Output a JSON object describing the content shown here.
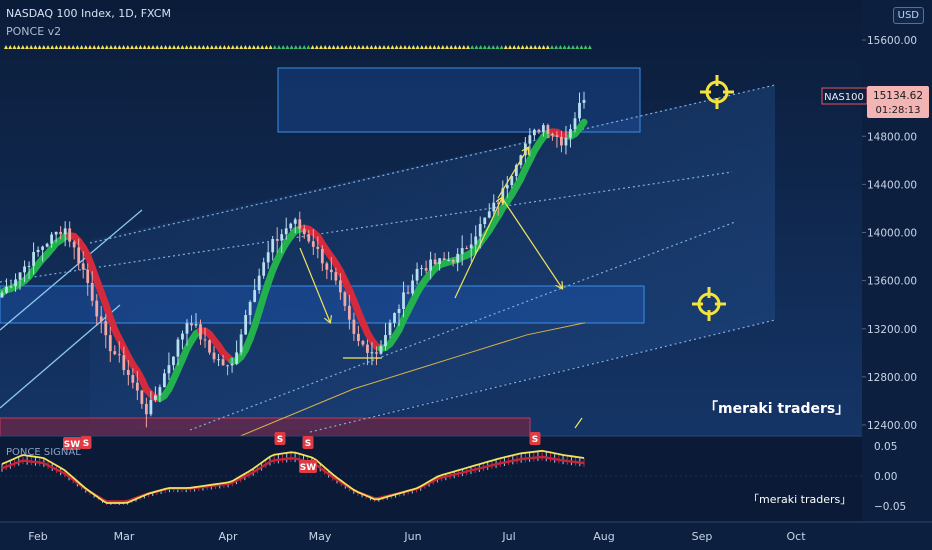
{
  "header": {
    "symbol_line": "NASDAQ 100 Index, 1D, FXCM",
    "indicator": "PONCE v2",
    "currency": "USD"
  },
  "price_tag": {
    "symbol": "NAS100",
    "price": "15134.62",
    "countdown": "01:28:13"
  },
  "watermark": "「meraki traders」",
  "colors": {
    "background_top": "#0c1f3f",
    "background_bottom": "#173a70",
    "candle_up": "#b7dff0",
    "candle_down": "#f2a7a7",
    "ribbon_up": "#22b14c",
    "ribbon_down": "#d42a3c",
    "annotation": "#f3e35b",
    "box_fill": "#1e5bb8",
    "box_stroke": "#3a8ee6"
  },
  "icons": [
    "crosshair-target-icon",
    "crosshair-target-icon"
  ],
  "chart_data": [
    {
      "type": "candlestick",
      "x_ticks": [
        "Feb",
        "Mar",
        "Apr",
        "May",
        "Jun",
        "Jul",
        "Aug",
        "Sep",
        "Oct"
      ],
      "y_ticks": [
        "15600.00",
        "14800.00",
        "14400.00",
        "14000.00",
        "13600.00",
        "13200.00",
        "12800.00",
        "12400.00"
      ],
      "ylim": [
        12400,
        15800
      ],
      "close_path": [
        13500,
        13700,
        13900,
        14050,
        13650,
        13100,
        12850,
        12500,
        12900,
        13300,
        13000,
        12850,
        13500,
        13900,
        14100,
        13900,
        13600,
        13100,
        13000,
        13350,
        13700,
        13750,
        13800,
        14050,
        14300,
        14700,
        14900,
        14750,
        15134.62
      ],
      "moving_average": [
        12200,
        12300,
        12500,
        12700,
        12850,
        13000,
        13150,
        13250
      ],
      "last_price": 15134.62,
      "last_price_symbol": "NAS100",
      "zones": [
        {
          "type": "supply",
          "low": 14900,
          "high": 15500
        },
        {
          "type": "demand",
          "low": 13300,
          "high": 13650
        },
        {
          "type": "demand",
          "low": 12300,
          "high": 12450
        }
      ]
    },
    {
      "type": "oscillator",
      "name": "PONCE SIGNAL",
      "y_ticks": [
        "0.05",
        "0.00",
        "−0.05"
      ],
      "ylim": [
        -0.07,
        0.07
      ],
      "values": [
        0.02,
        0.035,
        0.03,
        0.01,
        -0.02,
        -0.045,
        -0.045,
        -0.03,
        -0.02,
        -0.02,
        -0.015,
        -0.01,
        0.01,
        0.035,
        0.04,
        0.03,
        0.0,
        -0.025,
        -0.04,
        -0.03,
        -0.02,
        0.0,
        0.01,
        0.02,
        0.03,
        0.038,
        0.042,
        0.035,
        0.03
      ],
      "markers": [
        "SW",
        "S",
        "S",
        "S",
        "SW",
        "S"
      ]
    }
  ]
}
